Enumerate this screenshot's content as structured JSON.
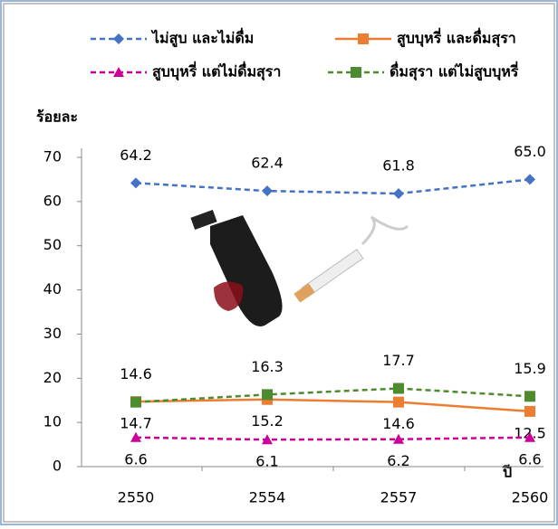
{
  "chart_data": {
    "type": "line",
    "y_label": "ร้อยละ",
    "x_label": "ปี",
    "categories": [
      "2550",
      "2554",
      "2557",
      "2560"
    ],
    "series": [
      {
        "name": "ไม่สูบ และไม่ดื่ม",
        "color": "#4472c4",
        "marker": "diamond",
        "dash": true,
        "values": [
          64.2,
          62.4,
          61.8,
          65.0
        ],
        "value_labels": [
          "64.2",
          "62.4",
          "61.8",
          "65.0"
        ]
      },
      {
        "name": "สูบบุหรี่ และดื่มสุรา",
        "color": "#ed7d31",
        "marker": "square",
        "dash": false,
        "values": [
          14.7,
          15.2,
          14.6,
          12.5
        ]
      },
      {
        "name": "สูบบุหรี่ แต่ไม่ดื่มสุรา",
        "color": "#cc0099",
        "marker": "triangle",
        "dash": true,
        "values": [
          6.6,
          6.1,
          6.2,
          6.6
        ]
      },
      {
        "name": "ดื่มสุรา แต่ไม่สูบบุหรี่",
        "color": "#4e8a2e",
        "marker": "square",
        "dash": true,
        "values": [
          14.6,
          16.3,
          17.7,
          15.9
        ]
      }
    ],
    "ylim": [
      0,
      70
    ],
    "yticks": [
      0,
      10,
      20,
      30,
      40,
      50,
      60,
      70
    ],
    "grid": false
  }
}
